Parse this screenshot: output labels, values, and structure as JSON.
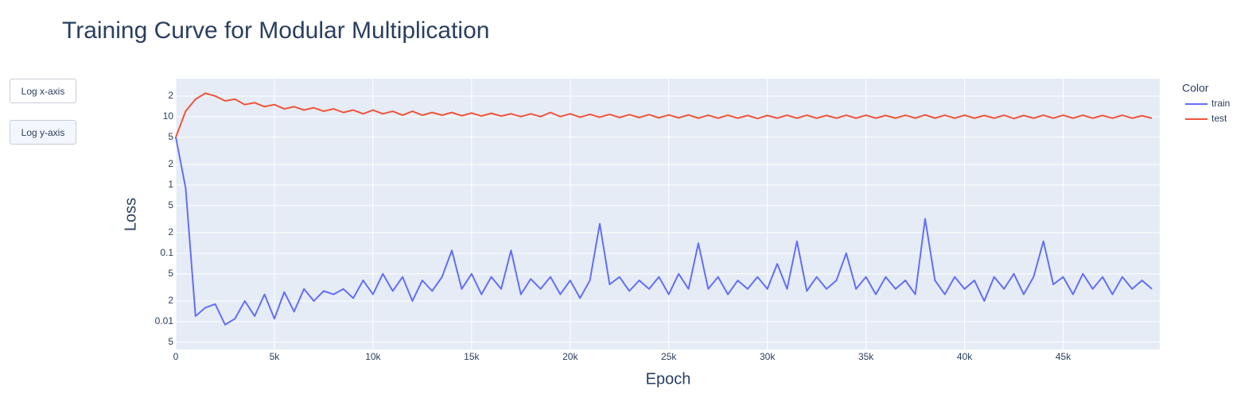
{
  "chart_data": {
    "type": "line",
    "title": "Training Curve for Modular Multiplication",
    "x_label": "Epoch",
    "y_label": "Loss",
    "legend_title": "Color",
    "buttons": [
      "Log x-axis",
      "Log y-axis"
    ],
    "log_y": true,
    "grid": true,
    "xlim": [
      0,
      49900
    ],
    "ylim": [
      0.0039,
      36
    ],
    "xticks": [
      0,
      {
        "value": 5000,
        "label": "5k"
      },
      {
        "value": 10000,
        "label": "10k"
      },
      {
        "value": 15000,
        "label": "15k"
      },
      {
        "value": 20000,
        "label": "20k"
      },
      {
        "value": 25000,
        "label": "25k"
      },
      {
        "value": 30000,
        "label": "30k"
      },
      {
        "value": 35000,
        "label": "35k"
      },
      {
        "value": 40000,
        "label": "40k"
      },
      {
        "value": 45000,
        "label": "45k"
      }
    ],
    "yticks": [
      {
        "value": 20,
        "label": "2"
      },
      10,
      5,
      2,
      1,
      {
        "value": 0.5,
        "label": "5"
      },
      {
        "value": 0.2,
        "label": "2"
      },
      0.1,
      {
        "value": 0.05,
        "label": "5"
      },
      {
        "value": 0.02,
        "label": "2"
      },
      0.01,
      {
        "value": 0.005,
        "label": "5"
      }
    ],
    "x": [
      0,
      500,
      1000,
      1500,
      2000,
      2500,
      3000,
      3500,
      4000,
      4500,
      5000,
      5500,
      6000,
      6500,
      7000,
      7500,
      8000,
      8500,
      9000,
      9500,
      10000,
      10500,
      11000,
      11500,
      12000,
      12500,
      13000,
      13500,
      14000,
      14500,
      15000,
      15500,
      16000,
      16500,
      17000,
      17500,
      18000,
      18500,
      19000,
      19500,
      20000,
      20500,
      21000,
      21500,
      22000,
      22500,
      23000,
      23500,
      24000,
      24500,
      25000,
      25500,
      26000,
      26500,
      27000,
      27500,
      28000,
      28500,
      29000,
      29500,
      30000,
      30500,
      31000,
      31500,
      32000,
      32500,
      33000,
      33500,
      34000,
      34500,
      35000,
      35500,
      36000,
      36500,
      37000,
      37500,
      38000,
      38500,
      39000,
      39500,
      40000,
      40500,
      41000,
      41500,
      42000,
      42500,
      43000,
      43500,
      44000,
      44500,
      45000,
      45500,
      46000,
      46500,
      47000,
      47500,
      48000,
      48500,
      49000,
      49500
    ],
    "series": [
      {
        "name": "train",
        "color": "#636efa",
        "values": [
          5,
          0.9,
          0.012,
          0.016,
          0.018,
          0.009,
          0.011,
          0.02,
          0.012,
          0.025,
          0.011,
          0.027,
          0.014,
          0.03,
          0.02,
          0.028,
          0.025,
          0.03,
          0.022,
          0.04,
          0.025,
          0.05,
          0.028,
          0.045,
          0.02,
          0.04,
          0.028,
          0.045,
          0.11,
          0.03,
          0.05,
          0.025,
          0.045,
          0.03,
          0.11,
          0.025,
          0.042,
          0.03,
          0.045,
          0.025,
          0.04,
          0.022,
          0.04,
          0.27,
          0.035,
          0.045,
          0.028,
          0.04,
          0.03,
          0.045,
          0.025,
          0.05,
          0.03,
          0.14,
          0.03,
          0.045,
          0.025,
          0.04,
          0.03,
          0.045,
          0.03,
          0.07,
          0.03,
          0.15,
          0.028,
          0.045,
          0.03,
          0.04,
          0.1,
          0.03,
          0.045,
          0.025,
          0.045,
          0.03,
          0.04,
          0.025,
          0.32,
          0.04,
          0.025,
          0.045,
          0.03,
          0.04,
          0.02,
          0.045,
          0.03,
          0.05,
          0.025,
          0.045,
          0.15,
          0.035,
          0.045,
          0.025,
          0.05,
          0.03,
          0.045,
          0.025,
          0.045,
          0.03,
          0.04,
          0.03
        ]
      },
      {
        "name": "test",
        "color": "#EF553B",
        "values": [
          5,
          12,
          18,
          22,
          20,
          17,
          18,
          15,
          16,
          14,
          15,
          13,
          14,
          12.5,
          13.5,
          12,
          13,
          11.5,
          12.5,
          11,
          12.5,
          11,
          12,
          10.5,
          12,
          10.5,
          11.5,
          10.5,
          11.5,
          10.3,
          11.3,
          10.2,
          11.2,
          10.2,
          11,
          10,
          11,
          10,
          11.5,
          10,
          11,
          9.8,
          10.8,
          9.8,
          10.8,
          9.7,
          10.7,
          9.7,
          10.7,
          9.6,
          10.6,
          9.6,
          10.6,
          9.5,
          10.5,
          9.5,
          10.5,
          9.5,
          10.4,
          9.4,
          10.4,
          9.5,
          10.5,
          9.5,
          10.5,
          9.5,
          10.4,
          9.5,
          10.5,
          9.5,
          10.5,
          9.5,
          10.4,
          9.5,
          10.5,
          9.5,
          10.6,
          9.5,
          10.5,
          9.5,
          10.5,
          9.5,
          10.4,
          9.5,
          10.5,
          9.4,
          10.4,
          9.5,
          10.5,
          9.5,
          10.5,
          9.5,
          10.5,
          9.5,
          10.4,
          9.5,
          10.5,
          9.5,
          10.3,
          9.5
        ]
      }
    ]
  }
}
